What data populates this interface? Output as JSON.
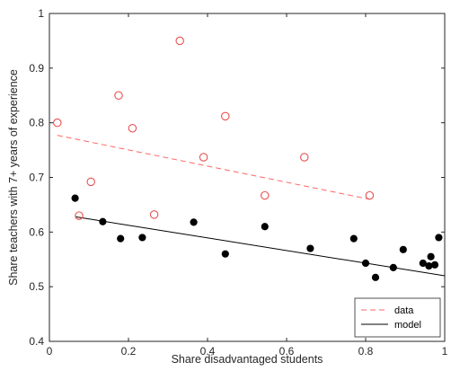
{
  "chart_data": {
    "type": "scatter",
    "title": "",
    "xlabel": "Share disadvantaged students",
    "ylabel": "Share teachers with 7+ years of experience",
    "xlim": [
      0,
      1
    ],
    "ylim": [
      0.4,
      1
    ],
    "xticks": [
      "0",
      "0.2",
      "0.4",
      "0.6",
      "0.8",
      "1"
    ],
    "yticks": [
      "0.4",
      "0.5",
      "0.6",
      "0.7",
      "0.8",
      "0.9",
      "1"
    ],
    "grid": false,
    "legend_position": "bottom-right",
    "legend": [
      {
        "label": "data",
        "style": "dashed",
        "color": "#ff6666"
      },
      {
        "label": "model",
        "style": "solid",
        "color": "#000000"
      }
    ],
    "series": [
      {
        "marker": "open-circle",
        "color": "#e85050",
        "points": [
          [
            0.02,
            0.8
          ],
          [
            0.075,
            0.63
          ],
          [
            0.105,
            0.692
          ],
          [
            0.175,
            0.85
          ],
          [
            0.21,
            0.79
          ],
          [
            0.265,
            0.632
          ],
          [
            0.33,
            0.95
          ],
          [
            0.39,
            0.737
          ],
          [
            0.445,
            0.812
          ],
          [
            0.545,
            0.667
          ],
          [
            0.645,
            0.737
          ],
          [
            0.81,
            0.667
          ]
        ]
      },
      {
        "marker": "filled-circle",
        "color": "#000000",
        "points": [
          [
            0.065,
            0.662
          ],
          [
            0.135,
            0.619
          ],
          [
            0.18,
            0.588
          ],
          [
            0.235,
            0.59
          ],
          [
            0.365,
            0.618
          ],
          [
            0.445,
            0.56
          ],
          [
            0.545,
            0.61
          ],
          [
            0.66,
            0.57
          ],
          [
            0.77,
            0.588
          ],
          [
            0.8,
            0.543
          ],
          [
            0.825,
            0.517
          ],
          [
            0.87,
            0.535
          ],
          [
            0.895,
            0.568
          ],
          [
            0.945,
            0.543
          ],
          [
            0.96,
            0.538
          ],
          [
            0.965,
            0.555
          ],
          [
            0.975,
            0.54
          ],
          [
            0.985,
            0.59
          ]
        ]
      }
    ],
    "fit_lines": [
      {
        "style": "dashed",
        "color": "#ff6666",
        "x": [
          0.02,
          0.81
        ],
        "y": [
          0.777,
          0.66
        ]
      },
      {
        "style": "solid",
        "color": "#000000",
        "x": [
          0.065,
          1.0
        ],
        "y": [
          0.628,
          0.52
        ]
      }
    ]
  }
}
